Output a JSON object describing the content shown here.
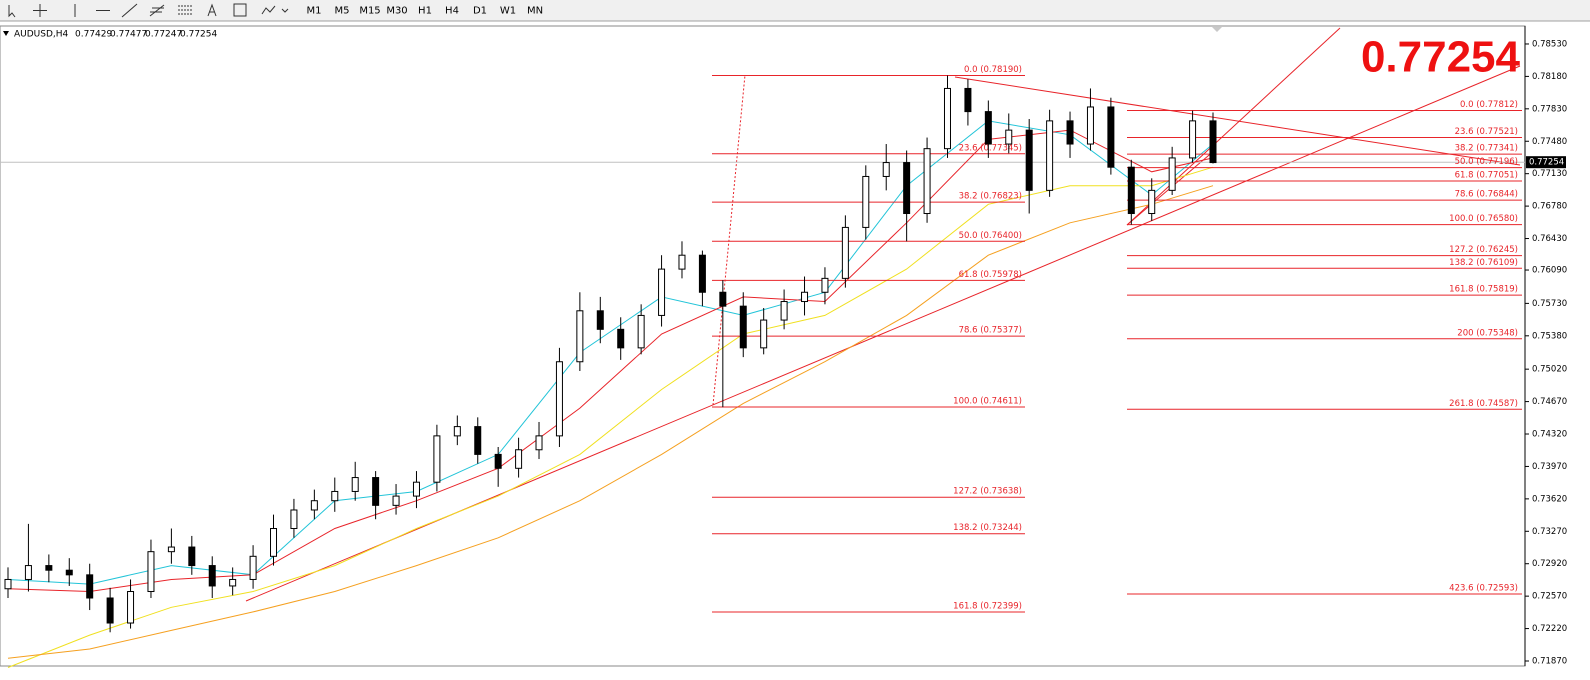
{
  "toolbar": {
    "timeframes": [
      "M1",
      "M5",
      "M15",
      "M30",
      "H1",
      "H4",
      "D1",
      "W1",
      "MN"
    ]
  },
  "chart_data": {
    "type": "candlestick",
    "symbol": "AUDUSD,H4",
    "ohlc_header": [
      0.77429,
      0.77477,
      0.77247,
      0.77254
    ],
    "current_price": 0.77254,
    "ylim": [
      0.71816,
      0.78724
    ],
    "yticks": [
      {
        "value": 0.7853,
        "label": "0.78530"
      },
      {
        "value": 0.7818,
        "label": "0.78180"
      },
      {
        "value": 0.7783,
        "label": "0.77830"
      },
      {
        "value": 0.7748,
        "label": "0.77480"
      },
      {
        "value": 0.7713,
        "label": "0.77130"
      },
      {
        "value": 0.7678,
        "label": "0.76780"
      },
      {
        "value": 0.7643,
        "label": "0.76430"
      },
      {
        "value": 0.7609,
        "label": "0.76090"
      },
      {
        "value": 0.7573,
        "label": "0.75730"
      },
      {
        "value": 0.7538,
        "label": "0.75380"
      },
      {
        "value": 0.7502,
        "label": "0.75020"
      },
      {
        "value": 0.7467,
        "label": "0.74670"
      },
      {
        "value": 0.7432,
        "label": "0.74320"
      },
      {
        "value": 0.7397,
        "label": "0.73970"
      },
      {
        "value": 0.7362,
        "label": "0.73620"
      },
      {
        "value": 0.7327,
        "label": "0.73270"
      },
      {
        "value": 0.7292,
        "label": "0.72920"
      },
      {
        "value": 0.7257,
        "label": "0.72570"
      },
      {
        "value": 0.7222,
        "label": "0.72220"
      },
      {
        "value": 0.7187,
        "label": "0.71870"
      }
    ],
    "open": [
      0.7265,
      0.7275,
      0.729,
      0.7285,
      0.728,
      0.7255,
      0.7228,
      0.7262,
      0.7305,
      0.731,
      0.729,
      0.7268,
      0.7275,
      0.73,
      0.733,
      0.735,
      0.736,
      0.737,
      0.7385,
      0.7355,
      0.7365,
      0.738,
      0.743,
      0.744,
      0.741,
      0.7395,
      0.7415,
      0.743,
      0.751,
      0.7565,
      0.7545,
      0.7525,
      0.756,
      0.761,
      0.7625,
      0.7585,
      0.757,
      0.7525,
      0.7555,
      0.7575,
      0.7585,
      0.76,
      0.7655,
      0.771,
      0.7725,
      0.767,
      0.774,
      0.7805,
      0.778,
      0.7745,
      0.776,
      0.7695,
      0.777,
      0.7745,
      0.7785,
      0.772,
      0.767,
      0.7695,
      0.773,
      0.777
    ],
    "high": [
      0.7288,
      0.7335,
      0.7302,
      0.7298,
      0.7292,
      0.7266,
      0.7275,
      0.7318,
      0.733,
      0.7322,
      0.73,
      0.7288,
      0.7312,
      0.7345,
      0.7362,
      0.7372,
      0.7385,
      0.7402,
      0.7392,
      0.7378,
      0.7392,
      0.7442,
      0.7452,
      0.745,
      0.7418,
      0.7428,
      0.7445,
      0.7525,
      0.7585,
      0.758,
      0.7558,
      0.7572,
      0.7625,
      0.764,
      0.763,
      0.7598,
      0.7585,
      0.7568,
      0.7588,
      0.7602,
      0.7612,
      0.7668,
      0.7722,
      0.7745,
      0.7738,
      0.7752,
      0.7819,
      0.7815,
      0.7792,
      0.7778,
      0.7772,
      0.7782,
      0.778,
      0.7805,
      0.7795,
      0.7728,
      0.7708,
      0.7742,
      0.7781,
      0.7779
    ],
    "low": [
      0.7255,
      0.7262,
      0.7272,
      0.7268,
      0.7242,
      0.7218,
      0.7222,
      0.7255,
      0.7292,
      0.728,
      0.7255,
      0.7258,
      0.7265,
      0.729,
      0.732,
      0.734,
      0.7348,
      0.736,
      0.734,
      0.7345,
      0.7352,
      0.737,
      0.742,
      0.74,
      0.7375,
      0.7385,
      0.7405,
      0.7418,
      0.75,
      0.753,
      0.7512,
      0.7518,
      0.7548,
      0.76,
      0.757,
      0.7461,
      0.7515,
      0.7518,
      0.7545,
      0.756,
      0.7572,
      0.759,
      0.7642,
      0.7695,
      0.764,
      0.766,
      0.773,
      0.7765,
      0.773,
      0.7735,
      0.767,
      0.7688,
      0.773,
      0.7738,
      0.7712,
      0.7658,
      0.7662,
      0.769,
      0.7725,
      0.7724
    ],
    "close": [
      0.7275,
      0.729,
      0.7285,
      0.728,
      0.7255,
      0.7228,
      0.7262,
      0.7305,
      0.731,
      0.729,
      0.7268,
      0.7275,
      0.73,
      0.733,
      0.735,
      0.736,
      0.737,
      0.7385,
      0.7355,
      0.7365,
      0.738,
      0.743,
      0.744,
      0.741,
      0.7395,
      0.7415,
      0.743,
      0.751,
      0.7565,
      0.7545,
      0.7525,
      0.756,
      0.761,
      0.7625,
      0.7585,
      0.757,
      0.7525,
      0.7555,
      0.7575,
      0.7585,
      0.76,
      0.7655,
      0.771,
      0.7725,
      0.767,
      0.774,
      0.7805,
      0.778,
      0.7745,
      0.776,
      0.7695,
      0.777,
      0.7745,
      0.7785,
      0.772,
      0.767,
      0.7695,
      0.773,
      0.777,
      0.7725
    ],
    "ma_x": [
      0,
      4,
      8,
      12,
      16,
      20,
      24,
      28,
      32,
      36,
      40,
      44,
      48,
      52,
      56,
      59
    ],
    "moving_averages": [
      {
        "color": "#22c4d8",
        "values": [
          0.7275,
          0.727,
          0.729,
          0.728,
          0.736,
          0.737,
          0.741,
          0.752,
          0.758,
          0.756,
          0.7585,
          0.77,
          0.777,
          0.7755,
          0.769,
          0.7745
        ]
      },
      {
        "color": "#e8242a",
        "values": [
          0.7265,
          0.7262,
          0.7275,
          0.728,
          0.733,
          0.736,
          0.7395,
          0.746,
          0.754,
          0.758,
          0.7575,
          0.766,
          0.775,
          0.776,
          0.7715,
          0.773
        ]
      },
      {
        "color": "#f0e020",
        "values": [
          0.718,
          0.7215,
          0.7245,
          0.7262,
          0.729,
          0.733,
          0.7365,
          0.741,
          0.748,
          0.754,
          0.756,
          0.761,
          0.768,
          0.77,
          0.77,
          0.772
        ]
      },
      {
        "color": "#f5a020",
        "values": [
          0.719,
          0.72,
          0.722,
          0.724,
          0.7262,
          0.729,
          0.732,
          0.736,
          0.741,
          0.7465,
          0.751,
          0.756,
          0.7625,
          0.766,
          0.768,
          0.77
        ]
      }
    ],
    "fib_left": [
      {
        "label": "0.0 (0.78190)",
        "price": 0.7819
      },
      {
        "label": "23.6 (0.77345)",
        "price": 0.77345
      },
      {
        "label": "38.2 (0.76823)",
        "price": 0.76823
      },
      {
        "label": "50.0 (0.76400)",
        "price": 0.764
      },
      {
        "label": "61.8 (0.75978)",
        "price": 0.75978
      },
      {
        "label": "78.6 (0.75377)",
        "price": 0.75377
      },
      {
        "label": "100.0 (0.74611)",
        "price": 0.74611
      },
      {
        "label": "127.2 (0.73638)",
        "price": 0.73638
      },
      {
        "label": "138.2 (0.73244)",
        "price": 0.73244
      },
      {
        "label": "161.8 (0.72399)",
        "price": 0.72399
      }
    ],
    "fib_right": [
      {
        "label": "0.0 (0.77812)",
        "price": 0.77812
      },
      {
        "label": "23.6 (0.77521)",
        "price": 0.77521
      },
      {
        "label": "38.2 (0.77341)",
        "price": 0.77341
      },
      {
        "label": "50.0 (0.77196)",
        "price": 0.77196
      },
      {
        "label": "61.8 (0.77051)",
        "price": 0.77051
      },
      {
        "label": "78.6 (0.76844)",
        "price": 0.76844
      },
      {
        "label": "100.0 (0.76580)",
        "price": 0.7658
      },
      {
        "label": "127.2 (0.76245)",
        "price": 0.76245
      },
      {
        "label": "138.2 (0.76109)",
        "price": 0.76109
      },
      {
        "label": "161.8 (0.75819)",
        "price": 0.75819
      },
      {
        "label": "200 (0.75348)",
        "price": 0.75348
      },
      {
        "label": "261.8 (0.74587)",
        "price": 0.74587
      },
      {
        "label": "423.6 (0.72593)",
        "price": 0.72593
      }
    ]
  }
}
